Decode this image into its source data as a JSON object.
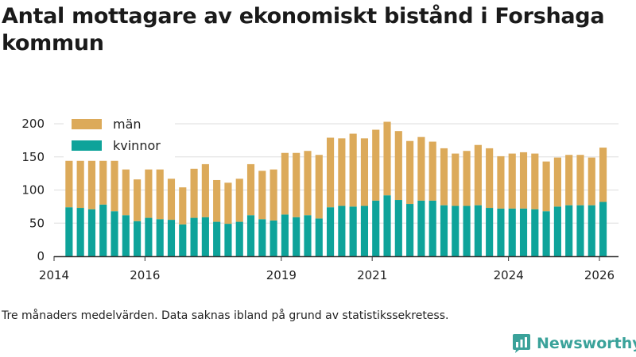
{
  "title": "Antal mottagare av ekonomiskt bistånd i Forshaga kommun",
  "note": "Tre månaders medelvärden. Data saknas ibland på grund av statistikssekretess.",
  "brand": {
    "name": "Newsworthy",
    "logo_icon": "newsworthy-logo-icon"
  },
  "colors": {
    "man": "#dcaa5a",
    "kvinnor": "#0ea39a",
    "grid": "#dddddd",
    "axis": "#333333"
  },
  "chart_data": {
    "type": "bar",
    "stacked": true,
    "title": "Antal mottagare av ekonomiskt bistånd i Forshaga kommun",
    "xlabel": "",
    "ylabel": "",
    "ylim": [
      0,
      200
    ],
    "xlim": [
      2014.0,
      2026.42
    ],
    "yticks": [
      0,
      50,
      100,
      150,
      200
    ],
    "xticks": [
      "2014",
      "2016",
      "2019",
      "2021",
      "2024",
      "2026"
    ],
    "xtick_values": [
      2014.0,
      2016.0,
      2019.0,
      2021.0,
      2024.0,
      2026.0
    ],
    "grid": true,
    "legend_position": "top-left",
    "x": [
      2014.33,
      2014.58,
      2014.83,
      2015.08,
      2015.33,
      2015.58,
      2015.83,
      2016.08,
      2016.33,
      2016.58,
      2016.83,
      2017.08,
      2017.33,
      2017.58,
      2017.83,
      2018.08,
      2018.33,
      2018.58,
      2018.83,
      2019.08,
      2019.33,
      2019.58,
      2019.83,
      2020.08,
      2020.33,
      2020.58,
      2020.83,
      2021.08,
      2021.33,
      2021.58,
      2021.83,
      2022.08,
      2022.33,
      2022.58,
      2022.83,
      2023.08,
      2023.33,
      2023.58,
      2023.83,
      2024.08,
      2024.33,
      2024.58,
      2024.83,
      2025.08,
      2025.33,
      2025.58,
      2025.83,
      2026.08
    ],
    "series": [
      {
        "name": "kvinnor",
        "values": [
          74,
          73,
          71,
          78,
          68,
          62,
          53,
          58,
          56,
          55,
          48,
          58,
          59,
          52,
          49,
          52,
          62,
          56,
          54,
          63,
          59,
          62,
          57,
          74,
          76,
          75,
          76,
          84,
          92,
          85,
          79,
          84,
          84,
          77,
          76,
          76,
          77,
          73,
          72,
          72,
          72,
          71,
          68,
          75,
          77,
          77,
          77,
          82
        ]
      },
      {
        "name": "män",
        "values": [
          70,
          71,
          73,
          66,
          76,
          69,
          63,
          73,
          75,
          62,
          56,
          74,
          80,
          63,
          62,
          65,
          77,
          73,
          77,
          93,
          97,
          97,
          96,
          105,
          102,
          110,
          102,
          107,
          111,
          104,
          95,
          96,
          89,
          86,
          79,
          83,
          91,
          90,
          79,
          83,
          85,
          84,
          75,
          74,
          76,
          76,
          72,
          82
        ]
      }
    ]
  }
}
